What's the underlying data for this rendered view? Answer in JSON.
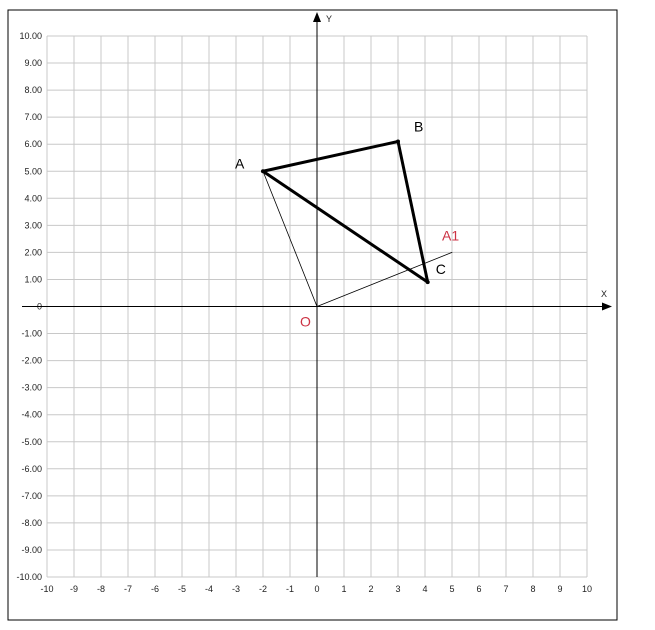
{
  "chart_data": {
    "type": "scatter",
    "xlabel": "X",
    "ylabel": "Y",
    "xlim": [
      -10,
      10
    ],
    "ylim": [
      -10,
      10
    ],
    "grid": true,
    "x_ticks": [
      "-10",
      "-9",
      "-8",
      "-7",
      "-6",
      "-5",
      "-4",
      "-3",
      "-2",
      "-1",
      "0",
      "1",
      "2",
      "3",
      "4",
      "5",
      "6",
      "7",
      "8",
      "9",
      "10"
    ],
    "y_ticks": [
      "10.00",
      "9.00",
      "8.00",
      "7.00",
      "6.00",
      "5.00",
      "4.00",
      "3.00",
      "2.00",
      "1.00",
      "0",
      "-1.00",
      "-2.00",
      "-3.00",
      "-4.00",
      "-5.00",
      "-6.00",
      "-7.00",
      "-8.00",
      "-9.00",
      "-10.00"
    ],
    "points": [
      {
        "name": "A",
        "x": -2,
        "y": 5,
        "color": "#000000"
      },
      {
        "name": "B",
        "x": 3,
        "y": 6.1,
        "color": "#000000"
      },
      {
        "name": "C",
        "x": 4.1,
        "y": 0.9,
        "color": "#000000"
      },
      {
        "name": "O",
        "x": 0,
        "y": 0,
        "color": "#cc3344"
      },
      {
        "name": "A1",
        "x": 5,
        "y": 2,
        "color": "#cc3344"
      }
    ],
    "segments": [
      {
        "from": "A",
        "to": "B",
        "style": "thick"
      },
      {
        "from": "B",
        "to": "C",
        "style": "thick"
      },
      {
        "from": "C",
        "to": "A",
        "style": "thick"
      },
      {
        "from": "O",
        "to": "A",
        "style": "thin"
      },
      {
        "from": "O",
        "to": "A1",
        "style": "thin"
      }
    ]
  }
}
